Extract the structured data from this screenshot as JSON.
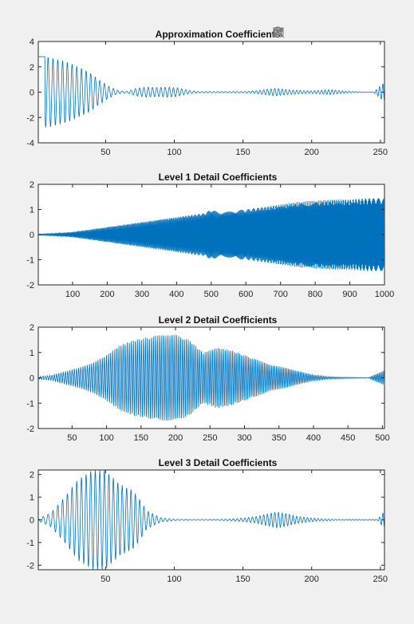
{
  "chart_data": [
    {
      "type": "line",
      "title": "Approximation Coefficients",
      "xlim": [
        1,
        253
      ],
      "ylim": [
        -4,
        4
      ],
      "xticks": [
        50,
        100,
        150,
        200,
        250
      ],
      "yticks": [
        -4,
        -2,
        0,
        2,
        4
      ],
      "series_color": "#0072bd",
      "envelope": {
        "x": [
          1,
          8,
          15,
          22,
          30,
          38,
          45,
          52,
          58,
          65,
          72,
          80,
          88,
          95,
          102,
          110,
          118,
          126,
          134,
          142,
          150,
          158,
          166,
          174,
          182,
          190,
          198,
          206,
          214,
          222,
          230,
          238,
          245,
          253
        ],
        "amp": [
          2.8,
          2.8,
          2.6,
          2.4,
          2.0,
          1.6,
          1.0,
          0.5,
          0.15,
          0.05,
          0.3,
          0.4,
          0.35,
          0.4,
          0.35,
          0.15,
          0.05,
          0.05,
          0.05,
          0.05,
          0.05,
          0.1,
          0.2,
          0.3,
          0.2,
          0.15,
          0.1,
          0.15,
          0.2,
          0.1,
          0.05,
          0.02,
          0.02,
          0.8
        ]
      }
    },
    {
      "type": "line",
      "title": "Level 1 Detail Coefficients",
      "xlim": [
        1,
        1000
      ],
      "ylim": [
        -2,
        2
      ],
      "xticks": [
        100,
        200,
        300,
        400,
        500,
        600,
        700,
        800,
        900,
        1000
      ],
      "yticks": [
        -2,
        -1,
        0,
        1,
        2
      ],
      "series_color": "#0072bd",
      "envelope": {
        "x": [
          1,
          50,
          100,
          150,
          200,
          250,
          300,
          350,
          400,
          450,
          480,
          500,
          520,
          550,
          600,
          650,
          700,
          750,
          800,
          850,
          900,
          950,
          1000
        ],
        "amp": [
          0.02,
          0.05,
          0.1,
          0.2,
          0.3,
          0.4,
          0.5,
          0.6,
          0.7,
          0.8,
          0.85,
          1.0,
          0.9,
          0.95,
          1.0,
          1.1,
          1.2,
          1.3,
          1.35,
          1.4,
          1.4,
          1.45,
          1.45
        ]
      }
    },
    {
      "type": "line",
      "title": "Level 2 Detail Coefficients",
      "xlim": [
        1,
        503
      ],
      "ylim": [
        -2,
        2
      ],
      "xticks": [
        50,
        100,
        150,
        200,
        250,
        300,
        350,
        400,
        450,
        500
      ],
      "yticks": [
        -2,
        -1,
        0,
        1,
        2
      ],
      "series_color": "#0072bd",
      "envelope": {
        "x": [
          1,
          20,
          40,
          60,
          80,
          100,
          120,
          140,
          160,
          180,
          200,
          220,
          240,
          260,
          280,
          300,
          320,
          340,
          360,
          380,
          400,
          420,
          440,
          460,
          480,
          503
        ],
        "amp": [
          0.05,
          0.1,
          0.25,
          0.4,
          0.6,
          0.9,
          1.3,
          1.5,
          1.6,
          1.7,
          1.7,
          1.5,
          1.0,
          1.2,
          1.1,
          0.9,
          0.7,
          0.5,
          0.4,
          0.25,
          0.12,
          0.05,
          0.03,
          0.02,
          0.01,
          0.3
        ]
      }
    },
    {
      "type": "line",
      "title": "Level 3 Detail Coefficients",
      "xlim": [
        1,
        253
      ],
      "ylim": [
        -2.2,
        2.2
      ],
      "xticks": [
        50,
        100,
        150,
        200,
        250
      ],
      "yticks": [
        -2,
        -1,
        0,
        1,
        2
      ],
      "series_color": "#0072bd",
      "envelope": {
        "x": [
          1,
          10,
          20,
          30,
          40,
          50,
          60,
          70,
          75,
          80,
          90,
          100,
          110,
          120,
          130,
          140,
          150,
          160,
          170,
          175,
          180,
          190,
          200,
          210,
          220,
          230,
          240,
          248,
          253
        ],
        "amp": [
          0.05,
          0.3,
          1.0,
          1.8,
          2.2,
          2.2,
          1.6,
          1.3,
          0.9,
          0.4,
          0.1,
          0.03,
          0.02,
          0.02,
          0.02,
          0.04,
          0.08,
          0.15,
          0.3,
          0.35,
          0.3,
          0.15,
          0.08,
          0.04,
          0.02,
          0.02,
          0.02,
          0.02,
          0.4
        ]
      }
    }
  ],
  "toolbar": {
    "icons": [
      "export-icon",
      "brush-icon",
      "data-tips-icon",
      "pan-icon",
      "zoom-in-icon",
      "zoom-out-icon",
      "home-icon"
    ]
  }
}
